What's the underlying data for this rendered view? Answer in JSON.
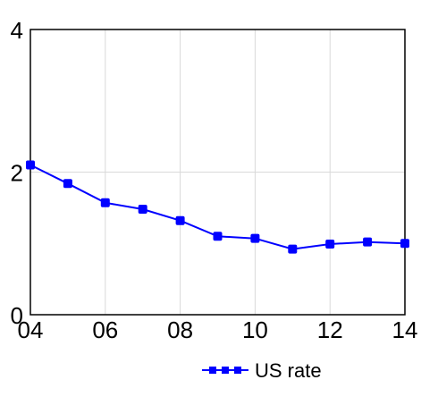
{
  "chart_data": {
    "type": "line",
    "title": "",
    "xlabel": "",
    "ylabel": "",
    "x": [
      4,
      5,
      6,
      7,
      8,
      9,
      10,
      11,
      12,
      13,
      14
    ],
    "xlim": [
      4,
      14
    ],
    "ylim": [
      0,
      4
    ],
    "x_ticks": [
      {
        "value": 4,
        "label": "04"
      },
      {
        "value": 6,
        "label": "06"
      },
      {
        "value": 8,
        "label": "08"
      },
      {
        "value": 10,
        "label": "10"
      },
      {
        "value": 12,
        "label": "12"
      },
      {
        "value": 14,
        "label": "14"
      }
    ],
    "y_ticks": [
      {
        "value": 0,
        "label": "0"
      },
      {
        "value": 2,
        "label": "2"
      },
      {
        "value": 4,
        "label": "4"
      }
    ],
    "grid": true,
    "legend_position": "bottom-right",
    "series": [
      {
        "name": "US rate",
        "color": "#0000ff",
        "values": [
          2.1,
          1.84,
          1.57,
          1.48,
          1.32,
          1.1,
          1.07,
          0.92,
          0.99,
          1.02,
          1.0
        ]
      }
    ]
  }
}
